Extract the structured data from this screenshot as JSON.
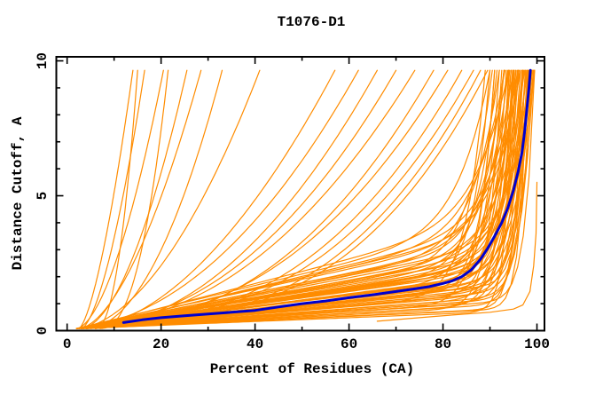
{
  "chart_data": {
    "type": "line",
    "title": "T1076-D1",
    "xlabel": "Percent of Residues (CA)",
    "ylabel": "Distance Cutoff, A",
    "xlim": [
      -2.3,
      101.6
    ],
    "ylim": [
      0,
      10.15
    ],
    "x_major_ticks": [
      0,
      20,
      40,
      60,
      80,
      100
    ],
    "x_minor_ticks": [
      10,
      30,
      50,
      70,
      90
    ],
    "y_major_ticks": [
      0,
      5,
      10
    ],
    "y_minor_ticks": [
      1,
      2,
      3,
      4,
      6,
      7,
      8,
      9
    ],
    "grid": false,
    "legend": "none",
    "colors": {
      "models": "#ff8c00",
      "highlight": "#0000cd",
      "frame": "#000000",
      "background": "#ffffff"
    },
    "start_y": 0.08,
    "curve_top": 9.65,
    "highlight_series": {
      "name": "highlighted-model",
      "color": "#0000cd",
      "points": [
        [
          12,
          0.3
        ],
        [
          16,
          0.4
        ],
        [
          20,
          0.48
        ],
        [
          25,
          0.55
        ],
        [
          30,
          0.62
        ],
        [
          35,
          0.68
        ],
        [
          40,
          0.75
        ],
        [
          45,
          0.88
        ],
        [
          50,
          1.0
        ],
        [
          55,
          1.1
        ],
        [
          60,
          1.22
        ],
        [
          65,
          1.33
        ],
        [
          70,
          1.45
        ],
        [
          74,
          1.55
        ],
        [
          77,
          1.63
        ],
        [
          80,
          1.75
        ],
        [
          82,
          1.85
        ],
        [
          84,
          2.0
        ],
        [
          86,
          2.25
        ],
        [
          88,
          2.65
        ],
        [
          89.5,
          3.05
        ],
        [
          91,
          3.5
        ],
        [
          92.5,
          4.0
        ],
        [
          93.8,
          4.55
        ],
        [
          95,
          5.2
        ],
        [
          96,
          5.9
        ],
        [
          96.8,
          6.6
        ],
        [
          97.4,
          7.4
        ],
        [
          97.9,
          8.3
        ],
        [
          98.3,
          9.0
        ],
        [
          98.6,
          9.65
        ]
      ]
    },
    "outlier_series": {
      "name": "low-outlier-model",
      "points": [
        [
          66,
          0.35
        ],
        [
          75,
          0.48
        ],
        [
          82,
          0.58
        ],
        [
          90,
          0.68
        ],
        [
          95,
          0.8
        ],
        [
          97,
          0.95
        ],
        [
          98.5,
          1.45
        ],
        [
          99.3,
          2.4
        ],
        [
          99.8,
          3.6
        ],
        [
          100.0,
          5.5
        ]
      ]
    },
    "model_params_note": "each orange curve encoded as [x_start_pct, x_end_pct, flat_slope_x1000, rise_exponent]; y(t) = start_y + slope*(x-x0) + (curve_top - start_y - slope*(xe-x0)) * t^k, t in [0,1]",
    "model_curves": [
      [
        2.5,
        14,
        0,
        1.5
      ],
      [
        6,
        15,
        0,
        2.2
      ],
      [
        3,
        16.5,
        0,
        1.6
      ],
      [
        2,
        20.5,
        0,
        1.7
      ],
      [
        7,
        21.5,
        0,
        2.4
      ],
      [
        3,
        25.5,
        0,
        1.8
      ],
      [
        2.5,
        28.5,
        0,
        1.7
      ],
      [
        4,
        33,
        0,
        2.0
      ],
      [
        3,
        41,
        30,
        1.9
      ],
      [
        5,
        57,
        25,
        1.9
      ],
      [
        3,
        62,
        28,
        2.1
      ],
      [
        6,
        66,
        22,
        2.1
      ],
      [
        4,
        70,
        25,
        2.3
      ],
      [
        3,
        74,
        20,
        2.3
      ],
      [
        6,
        78,
        18,
        2.5
      ],
      [
        4,
        81,
        20,
        2.6
      ],
      [
        5,
        84,
        16,
        2.8
      ],
      [
        3,
        86.5,
        15,
        3.0
      ],
      [
        6,
        88,
        14,
        3.1
      ],
      [
        4,
        89.5,
        13,
        3.3
      ],
      [
        2,
        89,
        14,
        22
      ],
      [
        3,
        90,
        22,
        25
      ],
      [
        2.5,
        90.5,
        30,
        18
      ],
      [
        3,
        91,
        11,
        28
      ],
      [
        4,
        91.5,
        26,
        20
      ],
      [
        2,
        92,
        17,
        30
      ],
      [
        3.5,
        92,
        35,
        16
      ],
      [
        3,
        92.5,
        9,
        35
      ],
      [
        4,
        93,
        20,
        26
      ],
      [
        2,
        93,
        28,
        19
      ],
      [
        3,
        93.2,
        40,
        14
      ],
      [
        4.5,
        93.5,
        15,
        32
      ],
      [
        2,
        93.8,
        24,
        22
      ],
      [
        3,
        94,
        10,
        40
      ],
      [
        4,
        94,
        32,
        18
      ],
      [
        2.5,
        94.2,
        18,
        28
      ],
      [
        3,
        94.5,
        26,
        24
      ],
      [
        4,
        94.8,
        13,
        36
      ],
      [
        2,
        95,
        22,
        28
      ],
      [
        3,
        95,
        36,
        16
      ],
      [
        3.5,
        95.2,
        16,
        34
      ],
      [
        4,
        95.5,
        28,
        22
      ],
      [
        2,
        95.5,
        11,
        42
      ],
      [
        3,
        95.8,
        20,
        30
      ],
      [
        4,
        96,
        31,
        19
      ],
      [
        2.5,
        96,
        14,
        38
      ],
      [
        3,
        96.2,
        24,
        26
      ],
      [
        4,
        96.5,
        18,
        32
      ],
      [
        2,
        96.5,
        38,
        15
      ],
      [
        3,
        96.8,
        12,
        45
      ],
      [
        3.5,
        97,
        27,
        22
      ],
      [
        4,
        97,
        16,
        36
      ],
      [
        2,
        97.2,
        21,
        28
      ],
      [
        3,
        97.4,
        33,
        18
      ],
      [
        4,
        97.5,
        10,
        50
      ],
      [
        2.5,
        97.6,
        19,
        32
      ],
      [
        3,
        97.8,
        25,
        24
      ],
      [
        4,
        98,
        15,
        38
      ],
      [
        2,
        98,
        29,
        20
      ],
      [
        3,
        98.2,
        12,
        48
      ],
      [
        3.5,
        98.4,
        22,
        28
      ],
      [
        4,
        98.5,
        17,
        34
      ],
      [
        2,
        98.6,
        26,
        23
      ],
      [
        3,
        98.8,
        13,
        44
      ],
      [
        4,
        99,
        20,
        30
      ],
      [
        2.5,
        99,
        31,
        19
      ],
      [
        3,
        99.2,
        15,
        40
      ],
      [
        4,
        99.3,
        23,
        26
      ],
      [
        2,
        99.4,
        18,
        34
      ],
      [
        3,
        99.5,
        11,
        50
      ],
      [
        3.5,
        99.5,
        27,
        22
      ],
      [
        2,
        90,
        42,
        13
      ],
      [
        3,
        94,
        45,
        13
      ],
      [
        4,
        96,
        42,
        15
      ],
      [
        2,
        97,
        8,
        55
      ],
      [
        3,
        95,
        7,
        58
      ],
      [
        4,
        98,
        8,
        60
      ],
      [
        2,
        93,
        35,
        20
      ],
      [
        3,
        96.5,
        40,
        17
      ],
      [
        4,
        98.5,
        35,
        21
      ],
      [
        2.5,
        91,
        18,
        30
      ],
      [
        3,
        94.5,
        22,
        33
      ],
      [
        4,
        97,
        30,
        28
      ],
      [
        2,
        95,
        25,
        40
      ],
      [
        3,
        98,
        18,
        50
      ]
    ]
  }
}
